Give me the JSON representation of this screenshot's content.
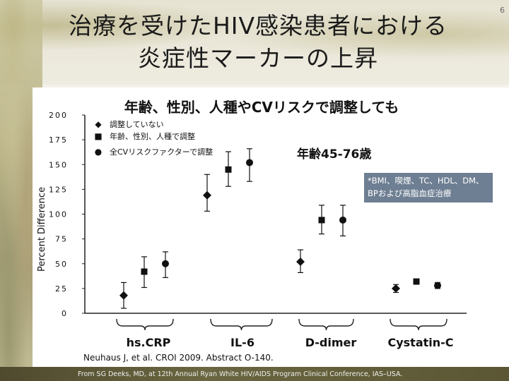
{
  "page": {
    "number": "6"
  },
  "title": {
    "line1": "治療を受けたHIV感染患者における",
    "line2": "炎症性マーカーの上昇"
  },
  "subtitle": "年齢、性別、人種やCVリスクで調整しても",
  "age_label": "年齢45-76歳",
  "note": {
    "line1": "*BMI、喫煙、TC、HDL、DM、",
    "line2": "BPおよび高脂血症治療"
  },
  "legend": [
    {
      "symbol": "◆",
      "label": "調整していない"
    },
    {
      "symbol": "■",
      "label": "年齢、性別、人種で調整"
    },
    {
      "symbol": "●",
      "label": "全CVリスクファクターで調整"
    }
  ],
  "citation": "Neuhaus  J, et al. CROI 2009. Abstract O-140.",
  "source": "From SG Deeks, MD, at 12th Annual Ryan White HIV/AIDS Program Clinical Conference, IAS–USA.",
  "chart_data": {
    "type": "scatter",
    "title": "年齢、性別、人種やCVリスクで調整しても",
    "ylabel": "Percent Difference",
    "xlabel": "",
    "ylim": [
      0,
      200
    ],
    "yticks": [
      0,
      25,
      50,
      75,
      100,
      125,
      150,
      175,
      200
    ],
    "categories": [
      "hs.CRP",
      "IL-6",
      "D-dimer",
      "Cystatin-C"
    ],
    "series": [
      {
        "name": "調整していない",
        "marker": "diamond",
        "values": [
          18,
          119,
          52,
          25
        ],
        "lower": [
          5,
          103,
          41,
          21
        ],
        "upper": [
          31,
          140,
          64,
          29
        ]
      },
      {
        "name": "年齢、性別、人種で調整",
        "marker": "square",
        "values": [
          42,
          145,
          94,
          32
        ],
        "lower": [
          26,
          128,
          80,
          30
        ],
        "upper": [
          57,
          163,
          109,
          34
        ]
      },
      {
        "name": "全CVリスクファクターで調整",
        "marker": "circle",
        "values": [
          50,
          152,
          94,
          28
        ],
        "lower": [
          36,
          133,
          78,
          25
        ],
        "upper": [
          62,
          166,
          109,
          31
        ]
      }
    ]
  }
}
